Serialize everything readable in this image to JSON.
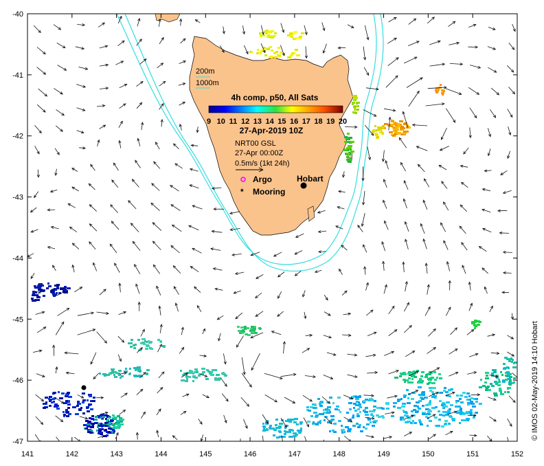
{
  "map": {
    "x_ticks": [
      "141",
      "142",
      "143",
      "144",
      "145",
      "146",
      "147",
      "148",
      "149",
      "150",
      "151",
      "152"
    ],
    "y_ticks": [
      "-40",
      "-41",
      "-42",
      "-43",
      "-44",
      "-45",
      "-46",
      "-47"
    ],
    "lon_range": [
      141,
      152
    ],
    "lat_range": [
      -47,
      -40
    ],
    "land_color": "#fac38c",
    "contour_color": "#33dede",
    "arrow_color": "#111111"
  },
  "legend": {
    "contour_200": "200m",
    "contour_1000": "1000m",
    "title": "4h comp, p50, All Sats",
    "colorbar_ticks": [
      "9",
      "10",
      "11",
      "12",
      "13",
      "14",
      "15",
      "16",
      "17",
      "18",
      "19",
      "20"
    ],
    "date": "27-Apr-2019 10Z",
    "product": "NRT00 GSL",
    "vector_time": "27-Apr 00:00Z",
    "scale_label": "0.5m/s (1kt 24h)",
    "argo_label": "Argo",
    "mooring_label": "Mooring"
  },
  "places": {
    "hobart": "Hobart"
  },
  "credit": "© IMOS 02-May-2019 14:10 Hobart"
}
